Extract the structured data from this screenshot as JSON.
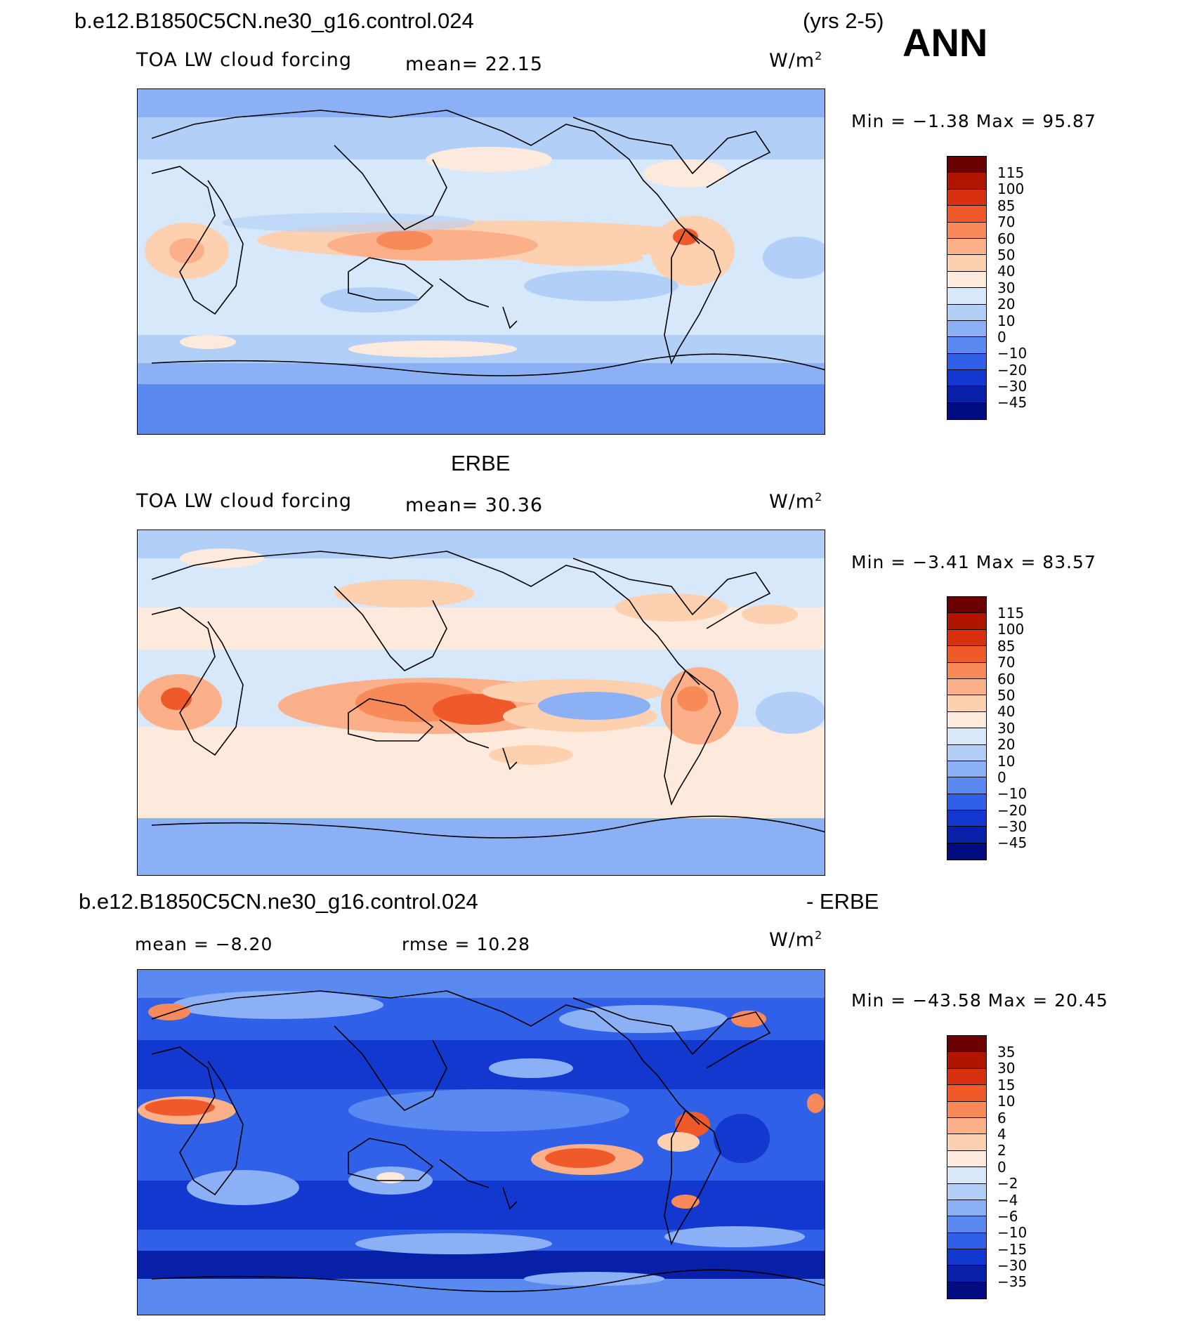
{
  "header": {
    "case_name": "b.e12.B1850C5CN.ne30_g16.control.024",
    "years": "(yrs 2-5)",
    "season": "ANN"
  },
  "panels": [
    {
      "id": "model",
      "title": "",
      "variable": "TOA LW cloud forcing",
      "mean_text": "mean=   22.15",
      "mean": 22.15,
      "units_base": "W/m",
      "units_exp": "2",
      "minmax_text": "Min =   −1.38  Max =   95.87",
      "min": -1.38,
      "max": 95.87
    },
    {
      "id": "obs",
      "title": "ERBE",
      "variable": "TOA LW cloud forcing",
      "mean_text": "mean=   30.36",
      "mean": 30.36,
      "units_base": "W/m",
      "units_exp": "2",
      "minmax_text": "Min =   −3.41  Max =   83.57",
      "min": -3.41,
      "max": 83.57
    },
    {
      "id": "diff",
      "title_left": "b.e12.B1850C5CN.ne30_g16.control.024",
      "title_right": "- ERBE",
      "mean_text": "mean  =   −8.20",
      "mean": -8.2,
      "rmse_text": "rmse  =   10.28",
      "rmse": 10.28,
      "units_base": "W/m",
      "units_exp": "2",
      "minmax_text": "Min = −43.58  Max =   20.45",
      "min": -43.58,
      "max": 20.45
    }
  ],
  "colorbar_abs": {
    "labels": [
      "115",
      "100",
      "85",
      "70",
      "60",
      "50",
      "40",
      "30",
      "20",
      "10",
      "0",
      "−10",
      "−20",
      "−30",
      "−45"
    ],
    "colors": [
      "#6b0000",
      "#b01500",
      "#d83010",
      "#f05a2a",
      "#f88a5a",
      "#fbb08a",
      "#fdd0b0",
      "#feeadc",
      "#d6e8fa",
      "#b2cff8",
      "#8cb0f5",
      "#5a8af0",
      "#3060e8",
      "#1338d0",
      "#0820a8",
      "#000c80"
    ]
  },
  "colorbar_diff": {
    "labels": [
      "35",
      "30",
      "15",
      "10",
      "6",
      "4",
      "2",
      "0",
      "−2",
      "−4",
      "−6",
      "−10",
      "−15",
      "−30",
      "−35"
    ],
    "colors": [
      "#6b0000",
      "#b01500",
      "#d83010",
      "#f05a2a",
      "#f88a5a",
      "#fbb08a",
      "#fdd0b0",
      "#feeadc",
      "#d6e8fa",
      "#b2cff8",
      "#8cb0f5",
      "#5a8af0",
      "#3060e8",
      "#1338d0",
      "#0820a8",
      "#000c80"
    ]
  }
}
